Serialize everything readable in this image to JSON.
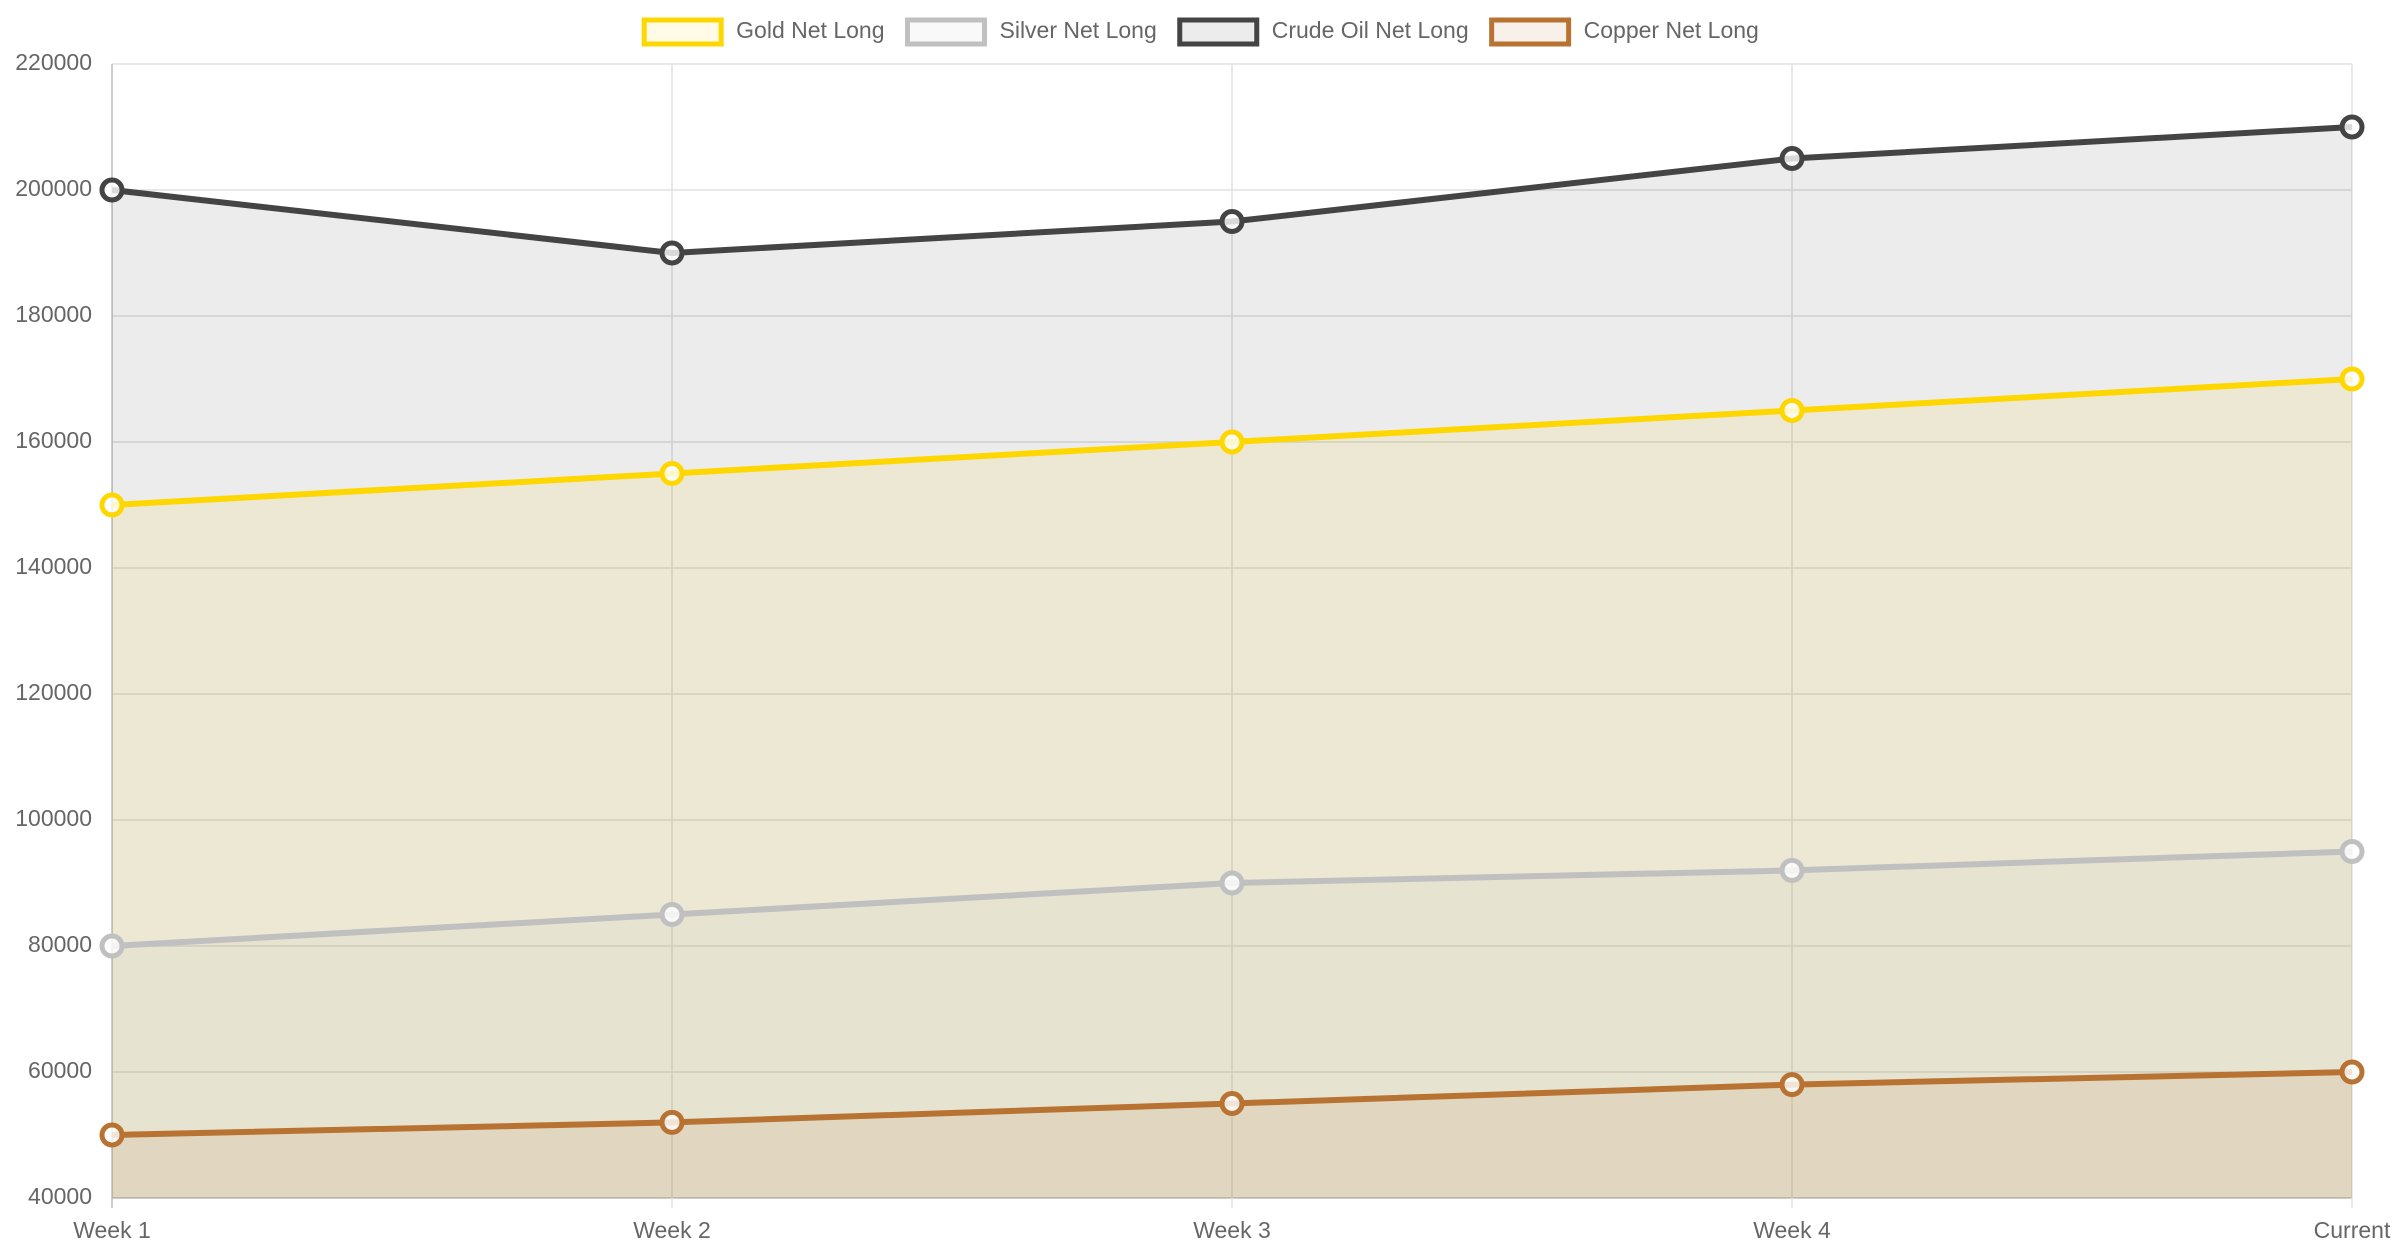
{
  "chart_data": {
    "type": "line",
    "categories": [
      "Week 1",
      "Week 2",
      "Week 3",
      "Week 4",
      "Current"
    ],
    "series": [
      {
        "name": "Gold Net Long",
        "color": "#FFD700",
        "values": [
          150000,
          155000,
          160000,
          165000,
          170000
        ]
      },
      {
        "name": "Silver Net Long",
        "color": "#C0C0C0",
        "values": [
          80000,
          85000,
          90000,
          92000,
          95000
        ]
      },
      {
        "name": "Crude Oil Net Long",
        "color": "#444444",
        "values": [
          200000,
          190000,
          195000,
          205000,
          210000
        ]
      },
      {
        "name": "Copper Net Long",
        "color": "#B87333",
        "values": [
          50000,
          52000,
          55000,
          58000,
          60000
        ]
      }
    ],
    "ylim": [
      40000,
      220000
    ],
    "yticks": [
      40000,
      60000,
      80000,
      100000,
      120000,
      140000,
      160000,
      180000,
      200000,
      220000
    ],
    "grid": true,
    "legend": "top",
    "fill": true
  }
}
